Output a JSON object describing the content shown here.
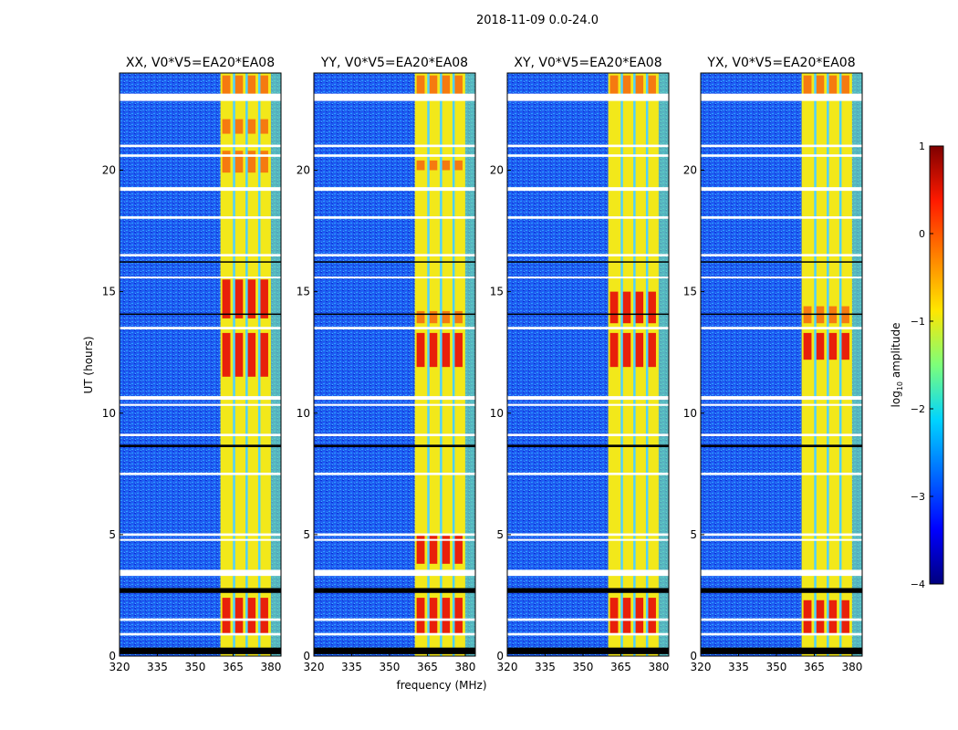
{
  "chart_data": {
    "type": "heatmap",
    "suptitle": "2018-11-09 0.0-24.0",
    "xlabel": "frequency (MHz)",
    "ylabel": "UT (hours)",
    "xlim": [
      320,
      384
    ],
    "ylim": [
      0,
      24
    ],
    "xticks": [
      "320",
      "335",
      "350",
      "365",
      "380"
    ],
    "xtick_values": [
      320,
      335,
      350,
      365,
      380
    ],
    "yticks": [
      "0",
      "5",
      "10",
      "15",
      "20"
    ],
    "ytick_values": [
      0,
      5,
      10,
      15,
      20
    ],
    "panels": [
      {
        "title": "XX, V0*V5=EA20*EA08",
        "band_level": -0.8,
        "red_hours": [
          [
            23.1,
            23.9
          ],
          [
            21.5,
            22.1
          ],
          [
            19.9,
            20.8
          ],
          [
            13.9,
            15.5
          ],
          [
            11.5,
            13.3
          ],
          [
            0.9,
            2.4
          ]
        ]
      },
      {
        "title": "YY, V0*V5=EA20*EA08",
        "band_level": -0.9,
        "red_hours": [
          [
            23.1,
            23.9
          ],
          [
            20.0,
            20.4
          ],
          [
            13.7,
            14.2
          ],
          [
            11.9,
            13.3
          ],
          [
            3.8,
            5.0
          ],
          [
            0.9,
            2.4
          ]
        ]
      },
      {
        "title": "XY, V0*V5=EA20*EA08",
        "band_level": -0.9,
        "red_hours": [
          [
            23.1,
            23.9
          ],
          [
            13.7,
            15.0
          ],
          [
            11.9,
            13.3
          ],
          [
            0.9,
            2.4
          ]
        ]
      },
      {
        "title": "YX, V0*V5=EA20*EA08",
        "band_level": -0.9,
        "red_hours": [
          [
            23.1,
            23.9
          ],
          [
            13.7,
            14.4
          ],
          [
            12.2,
            13.3
          ],
          [
            0.9,
            2.3
          ]
        ]
      }
    ],
    "background_level": -2.8,
    "rfi_band_mhz": [
      360,
      380
    ],
    "rfi_gap_lines_mhz": [
      365.3,
      370.3,
      375.3
    ],
    "flagged_hours": [
      [
        22.85,
        23.15
      ],
      [
        20.95,
        21.05
      ],
      [
        20.55,
        20.65
      ],
      [
        19.15,
        19.3
      ],
      [
        18.0,
        18.1
      ],
      [
        16.45,
        16.55
      ],
      [
        15.55,
        15.62
      ],
      [
        13.45,
        13.55
      ],
      [
        10.55,
        10.7
      ],
      [
        10.3,
        10.38
      ],
      [
        9.05,
        9.15
      ],
      [
        7.45,
        7.55
      ],
      [
        4.95,
        5.05
      ],
      [
        4.75,
        4.82
      ],
      [
        3.3,
        3.55
      ],
      [
        1.45,
        1.55
      ],
      [
        0.85,
        0.95
      ]
    ],
    "black_hours": [
      [
        0.08,
        0.35
      ],
      [
        2.6,
        2.8
      ],
      [
        8.6,
        8.7
      ],
      [
        16.2,
        16.25
      ],
      [
        14.05,
        14.1
      ]
    ],
    "colorbar": {
      "label": "log10 amplitude",
      "label_main": "log",
      "label_sub": "10",
      "label_rest": " amplitude",
      "range": [
        -4,
        1
      ],
      "ticks": [
        "1",
        "0",
        "−1",
        "−2",
        "−3",
        "−4"
      ],
      "tick_values": [
        1,
        0,
        -1,
        -2,
        -3,
        -4
      ]
    }
  }
}
